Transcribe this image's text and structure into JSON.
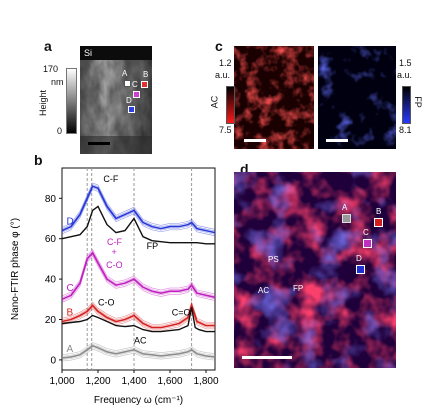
{
  "panels": {
    "a": {
      "label": "a",
      "substrate_label": "Si",
      "colorbar_max": "170",
      "colorbar_unit": "nm",
      "colorbar_min": "0",
      "colorbar_title": "Height",
      "markers": [
        "A",
        "B",
        "C",
        "D"
      ]
    },
    "b": {
      "label": "b",
      "chart_data": {
        "type": "line",
        "xlabel": "Frequency ω (cm⁻¹)",
        "ylabel": "Nano-FTIR phase φ (°)",
        "xlim": [
          1000,
          1850
        ],
        "ylim": [
          -5,
          95
        ],
        "xticks": [
          "1,000",
          "1,200",
          "1,400",
          "1,600",
          "1,800"
        ],
        "yticks": [
          "0",
          "20",
          "40",
          "60",
          "80"
        ],
        "vlines": [
          1140,
          1165,
          1400,
          1720
        ],
        "annotations": [
          "C-F",
          "FP",
          "C-F",
          "+",
          "C-O",
          "C-O",
          "C=O",
          "AC"
        ],
        "series": [
          {
            "name": "A",
            "color": "#8c8c8c",
            "x": [
              1000,
              1050,
              1100,
              1140,
              1170,
              1200,
              1250,
              1300,
              1350,
              1400,
              1450,
              1500,
              1550,
              1600,
              1650,
              1700,
              1720,
              1750,
              1800,
              1850
            ],
            "y": [
              1,
              1.5,
              2.5,
              5,
              7,
              6,
              4,
              3,
              4,
              5,
              3,
              2.5,
              2,
              2.5,
              3,
              4,
              5,
              3,
              2,
              1.5
            ]
          },
          {
            "name": "B",
            "color": "#d62020",
            "x": [
              1000,
              1050,
              1100,
              1140,
              1170,
              1200,
              1250,
              1300,
              1350,
              1400,
              1450,
              1500,
              1550,
              1600,
              1650,
              1700,
              1720,
              1750,
              1800,
              1850
            ],
            "y": [
              19,
              20,
              22,
              24,
              27,
              24,
              21,
              19,
              20,
              22,
              18,
              16,
              16,
              17,
              18,
              21,
              27,
              19,
              17,
              17
            ]
          },
          {
            "name": "C",
            "color": "#c020c0",
            "x": [
              1000,
              1050,
              1100,
              1140,
              1170,
              1200,
              1250,
              1300,
              1350,
              1400,
              1450,
              1500,
              1550,
              1600,
              1650,
              1700,
              1720,
              1750,
              1800,
              1850
            ],
            "y": [
              30,
              32,
              38,
              50,
              53,
              48,
              40,
              37,
              38,
              40,
              36,
              34,
              33,
              34,
              34,
              35,
              37,
              33,
              32,
              31
            ]
          },
          {
            "name": "D",
            "color": "#2838d8",
            "x": [
              1000,
              1050,
              1100,
              1140,
              1170,
              1200,
              1250,
              1300,
              1350,
              1400,
              1450,
              1500,
              1550,
              1600,
              1650,
              1700,
              1720,
              1750,
              1800,
              1850
            ],
            "y": [
              64,
              66,
              72,
              80,
              86,
              85,
              76,
              70,
              72,
              74,
              68,
              66,
              65,
              66,
              66,
              67,
              68,
              65,
              64,
              63
            ]
          },
          {
            "name": "FP",
            "color": "#111111",
            "x": [
              1000,
              1050,
              1100,
              1140,
              1170,
              1200,
              1250,
              1300,
              1350,
              1400,
              1450,
              1500,
              1550,
              1600,
              1650,
              1700,
              1750,
              1800,
              1850
            ],
            "y": [
              60,
              61,
              62,
              66,
              74,
              76,
              67,
              63,
              64,
              70,
              61,
              59,
              58.5,
              58,
              58,
              58,
              58,
              57.5,
              57.5
            ]
          },
          {
            "name": "AC",
            "color": "#111111",
            "x": [
              1000,
              1050,
              1100,
              1140,
              1170,
              1200,
              1250,
              1300,
              1350,
              1400,
              1450,
              1500,
              1550,
              1600,
              1650,
              1700,
              1720,
              1740,
              1760,
              1800,
              1850
            ],
            "y": [
              18,
              18.5,
              19,
              20,
              22,
              21,
              19,
              17,
              16.5,
              17,
              15,
              14,
              14,
              14.5,
              15,
              17,
              26,
              16,
              15,
              14,
              14
            ]
          }
        ]
      }
    },
    "c": {
      "label": "c",
      "ac_max": "1.2",
      "ac_unit": "a.u.",
      "ac_min": "7.5",
      "ac_title": "AC",
      "fp_max": "1.5",
      "fp_unit": "a.u.",
      "fp_min": "8.1",
      "fp_title": "FP"
    },
    "d": {
      "label": "d",
      "markers": [
        "A",
        "B",
        "C",
        "D"
      ],
      "region_labels": [
        "PS",
        "AC",
        "FP"
      ]
    }
  },
  "colors": {
    "red": "#d62020",
    "magenta": "#c020c0",
    "blue": "#2838d8",
    "gray": "#8c8c8c"
  }
}
